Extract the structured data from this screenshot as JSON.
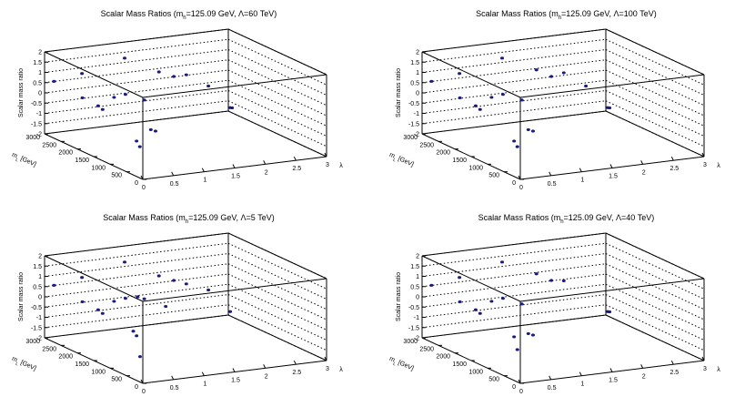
{
  "chart_data": [
    {
      "type": "scatter",
      "title_parts": {
        "pre": "Scalar Mass Ratios (m",
        "sub": "h",
        "post": "=125.09 GeV, Λ=60 TeV)"
      },
      "xlabel": "λ",
      "ylabel": "m",
      "ylabel_sub": "L",
      "ylabel_unit": " [GeV]",
      "zlabel": "Scalar mass ratio",
      "xlim": [
        0,
        3
      ],
      "ylim": [
        0,
        3000
      ],
      "zlim": [
        -2,
        2
      ],
      "x_ticks": [
        "0",
        "0.5",
        "1",
        "1.5",
        "2",
        "2.5",
        "3"
      ],
      "y_ticks": [
        "0",
        "500",
        "1000",
        "1500",
        "2000",
        "2500",
        "3000"
      ],
      "z_ticks": [
        "-2",
        "-1.5",
        "-1",
        "-0.5",
        "0",
        "0.5",
        "1",
        "1.5",
        "2"
      ],
      "marker_color": "#1a1a80",
      "points": [
        {
          "x": 0.1,
          "y": 2900,
          "z": 0.6
        },
        {
          "x": 0.45,
          "y": 2700,
          "z": 1.0
        },
        {
          "x": 0.35,
          "y": 2500,
          "z": 0.0
        },
        {
          "x": 0.5,
          "y": 2300,
          "z": -0.3
        },
        {
          "x": 0.6,
          "y": 2350,
          "z": -0.55
        },
        {
          "x": 0.6,
          "y": 2000,
          "z": 0.3
        },
        {
          "x": 1.2,
          "y": 2800,
          "z": 1.4
        },
        {
          "x": 1.0,
          "y": 2400,
          "z": 0.0
        },
        {
          "x": 1.2,
          "y": 2200,
          "z": -0.2
        },
        {
          "x": 1.6,
          "y": 2500,
          "z": 0.8
        },
        {
          "x": 1.95,
          "y": 2700,
          "z": 0.3
        },
        {
          "x": 2.1,
          "y": 2600,
          "z": 0.4
        },
        {
          "x": 2.3,
          "y": 2300,
          "z": 0.0
        },
        {
          "x": 2.55,
          "y": 2100,
          "z": -1.0
        },
        {
          "x": 2.58,
          "y": 2100,
          "z": -1.02
        },
        {
          "x": 0.7,
          "y": 1500,
          "z": -1.5
        },
        {
          "x": 0.7,
          "y": 1400,
          "z": -1.7
        },
        {
          "x": 1.2,
          "y": 2000,
          "z": -1.5
        },
        {
          "x": 1.25,
          "y": 1950,
          "z": -1.55
        }
      ]
    },
    {
      "type": "scatter",
      "title_parts": {
        "pre": "Scalar Mass Ratios (m",
        "sub": "h",
        "post": "=125.09 GeV, Λ=100 TeV)"
      },
      "xlabel": "λ",
      "ylabel": "m",
      "ylabel_sub": "L",
      "ylabel_unit": " [GeV]",
      "zlabel": "Scalar mass ratio",
      "xlim": [
        0,
        3
      ],
      "ylim": [
        0,
        3000
      ],
      "zlim": [
        -2,
        2
      ],
      "x_ticks": [
        "0",
        "0.5",
        "1",
        "1.5",
        "2",
        "2.5",
        "3"
      ],
      "y_ticks": [
        "0",
        "500",
        "1000",
        "1500",
        "2000",
        "2500",
        "3000"
      ],
      "z_ticks": [
        "-2",
        "-1.5",
        "-1",
        "-0.5",
        "0",
        "0.5",
        "1",
        "1.5",
        "2"
      ],
      "marker_color": "#1a1a80",
      "points": [
        {
          "x": 0.1,
          "y": 2900,
          "z": 0.6
        },
        {
          "x": 0.45,
          "y": 2700,
          "z": 1.0
        },
        {
          "x": 0.35,
          "y": 2500,
          "z": 0.0
        },
        {
          "x": 0.5,
          "y": 2300,
          "z": -0.3
        },
        {
          "x": 0.6,
          "y": 2350,
          "z": -0.55
        },
        {
          "x": 0.6,
          "y": 2000,
          "z": 0.3
        },
        {
          "x": 1.2,
          "y": 2800,
          "z": 1.4
        },
        {
          "x": 1.0,
          "y": 2400,
          "z": 0.0
        },
        {
          "x": 1.2,
          "y": 2200,
          "z": -0.2
        },
        {
          "x": 1.6,
          "y": 2500,
          "z": 0.9
        },
        {
          "x": 1.95,
          "y": 2700,
          "z": 0.3
        },
        {
          "x": 2.1,
          "y": 2600,
          "z": 0.5
        },
        {
          "x": 2.3,
          "y": 2300,
          "z": 0.0
        },
        {
          "x": 2.55,
          "y": 2100,
          "z": -1.0
        },
        {
          "x": 2.58,
          "y": 2100,
          "z": -1.02
        },
        {
          "x": 0.7,
          "y": 1500,
          "z": -1.5
        },
        {
          "x": 0.7,
          "y": 1400,
          "z": -1.7
        },
        {
          "x": 1.2,
          "y": 2000,
          "z": -1.5
        },
        {
          "x": 1.25,
          "y": 1950,
          "z": -1.55
        }
      ]
    },
    {
      "type": "scatter",
      "title_parts": {
        "pre": "Scalar Mass Ratios (m",
        "sub": "h",
        "post": "=125.09 GeV, Λ=5 TeV)"
      },
      "xlabel": "λ",
      "ylabel": "m",
      "ylabel_sub": "L",
      "ylabel_unit": " [GeV]",
      "zlabel": "Scalar mass ratio",
      "xlim": [
        0,
        3
      ],
      "ylim": [
        0,
        3000
      ],
      "zlim": [
        -2,
        2
      ],
      "x_ticks": [
        "0",
        "0.5",
        "1",
        "1.5",
        "2",
        "2.5",
        "3"
      ],
      "y_ticks": [
        "0",
        "500",
        "1000",
        "1500",
        "2000",
        "2500",
        "3000"
      ],
      "z_ticks": [
        "-2",
        "-1.5",
        "-1",
        "-0.5",
        "0",
        "0.5",
        "1",
        "1.5",
        "2"
      ],
      "marker_color": "#1a1a80",
      "points": [
        {
          "x": 0.1,
          "y": 2900,
          "z": 0.6
        },
        {
          "x": 0.45,
          "y": 2700,
          "z": 1.0
        },
        {
          "x": 0.35,
          "y": 2500,
          "z": 0.0
        },
        {
          "x": 0.5,
          "y": 2300,
          "z": -0.3
        },
        {
          "x": 0.6,
          "y": 2350,
          "z": -0.55
        },
        {
          "x": 0.6,
          "y": 2000,
          "z": 0.3
        },
        {
          "x": 1.2,
          "y": 2800,
          "z": 1.4
        },
        {
          "x": 1.0,
          "y": 2400,
          "z": 0.0
        },
        {
          "x": 1.2,
          "y": 2200,
          "z": 0.05
        },
        {
          "x": 1.6,
          "y": 2500,
          "z": 0.8
        },
        {
          "x": 1.95,
          "y": 2700,
          "z": 0.3
        },
        {
          "x": 2.1,
          "y": 2600,
          "z": 0.15
        },
        {
          "x": 2.3,
          "y": 2300,
          "z": 0.0
        },
        {
          "x": 2.55,
          "y": 2100,
          "z": -1.0
        },
        {
          "x": 1.55,
          "y": 2200,
          "z": -0.45
        },
        {
          "x": 1.2,
          "y": 2400,
          "z": 0.0
        },
        {
          "x": 0.7,
          "y": 1600,
          "z": -0.9
        },
        {
          "x": 0.7,
          "y": 1500,
          "z": -1.05
        },
        {
          "x": 0.65,
          "y": 1300,
          "z": -1.9
        }
      ]
    },
    {
      "type": "scatter",
      "title_parts": {
        "pre": "Scalar Mass Ratios (m",
        "sub": "h",
        "post": "=125.09 GeV, Λ=40 TeV)"
      },
      "xlabel": "λ",
      "ylabel": "m",
      "ylabel_sub": "L",
      "ylabel_unit": " [GeV]",
      "zlabel": "Scalar mass ratio",
      "xlim": [
        0,
        3
      ],
      "ylim": [
        0,
        3000
      ],
      "zlim": [
        -2,
        2
      ],
      "x_ticks": [
        "0",
        "0.5",
        "1",
        "1.5",
        "2",
        "2.5",
        "3"
      ],
      "y_ticks": [
        "0",
        "500",
        "1000",
        "1500",
        "2000",
        "2500",
        "3000"
      ],
      "z_ticks": [
        "-2",
        "-1.5",
        "-1",
        "-0.5",
        "0",
        "0.5",
        "1",
        "1.5",
        "2"
      ],
      "marker_color": "#1a1a80",
      "points": [
        {
          "x": 0.1,
          "y": 2900,
          "z": 0.6
        },
        {
          "x": 0.45,
          "y": 2700,
          "z": 1.0
        },
        {
          "x": 0.35,
          "y": 2500,
          "z": 0.0
        },
        {
          "x": 0.5,
          "y": 2300,
          "z": -0.3
        },
        {
          "x": 0.6,
          "y": 2350,
          "z": -0.55
        },
        {
          "x": 0.6,
          "y": 2000,
          "z": 0.3
        },
        {
          "x": 1.2,
          "y": 2800,
          "z": 1.4
        },
        {
          "x": 1.0,
          "y": 2400,
          "z": 0.0
        },
        {
          "x": 1.2,
          "y": 2200,
          "z": -0.2
        },
        {
          "x": 1.6,
          "y": 2500,
          "z": 0.9
        },
        {
          "x": 1.95,
          "y": 2700,
          "z": 0.3
        },
        {
          "x": 2.1,
          "y": 2600,
          "z": 0.3
        },
        {
          "x": 2.55,
          "y": 2100,
          "z": -1.0
        },
        {
          "x": 2.58,
          "y": 2100,
          "z": -1.02
        },
        {
          "x": 0.7,
          "y": 1500,
          "z": -1.1
        },
        {
          "x": 0.7,
          "y": 1400,
          "z": -1.65
        },
        {
          "x": 1.2,
          "y": 2000,
          "z": -1.5
        },
        {
          "x": 1.25,
          "y": 1950,
          "z": -1.55
        }
      ]
    }
  ]
}
